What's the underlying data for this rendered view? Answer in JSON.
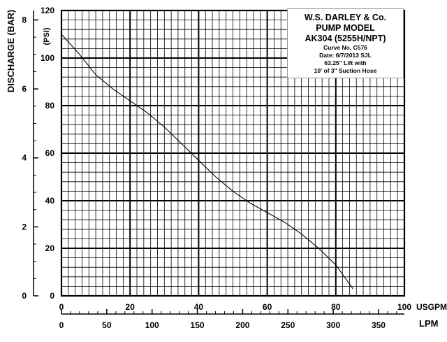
{
  "chart_data": {
    "type": "line",
    "title": "",
    "series": [
      {
        "x": [
          0,
          5,
          10,
          15,
          20,
          25,
          30,
          35,
          40,
          45,
          50,
          55,
          60,
          65,
          70,
          75,
          80,
          85
        ],
        "y": [
          110,
          102,
          93,
          87,
          82,
          77,
          71,
          64,
          57,
          50,
          44,
          39,
          35,
          31,
          26,
          20,
          13,
          3
        ]
      }
    ],
    "x_axis": {
      "label": "USGPM",
      "range": [
        0,
        100
      ],
      "ticks": [
        0,
        20,
        40,
        60,
        80,
        100
      ],
      "tick_labels": [
        "0",
        "20",
        "40",
        "60",
        "80",
        "100"
      ],
      "minor_step": 2
    },
    "x2_axis": {
      "label": "LPM",
      "range": [
        0,
        378.54
      ],
      "ticks": [
        0,
        50,
        100,
        150,
        200,
        250,
        300,
        350
      ],
      "tick_labels": [
        "0",
        "50",
        "100",
        "150",
        "200",
        "250",
        "300",
        "350"
      ],
      "minor_step": 10
    },
    "y_axis": {
      "label": "(PSI)",
      "range": [
        0,
        120
      ],
      "ticks": [
        0,
        20,
        40,
        60,
        80,
        100,
        120
      ],
      "tick_labels": [
        "0",
        "20",
        "40",
        "60",
        "80",
        "100",
        "120"
      ],
      "minor_step": 4
    },
    "y2_axis": {
      "label": "DISCHARGE (BAR)",
      "range": [
        0,
        8.2737
      ],
      "ticks": [
        0,
        2,
        4,
        6,
        8
      ],
      "tick_labels": [
        "0",
        "2",
        "4",
        "6",
        "8"
      ],
      "minor_step": 0.5
    },
    "grid": true,
    "legend": "none",
    "info_box": {
      "lines": [
        "W.S. DARLEY & Co.",
        "PUMP MODEL",
        "AK304 (5255H/NPT)",
        "Curve No. C576",
        "Date: 6/7/2013  SJL",
        "63.25\" Lift with",
        "10' of 3\" Suction Hose"
      ]
    },
    "colors": {
      "line": "#000000",
      "grid": "#000000",
      "background": "#ffffff"
    }
  }
}
